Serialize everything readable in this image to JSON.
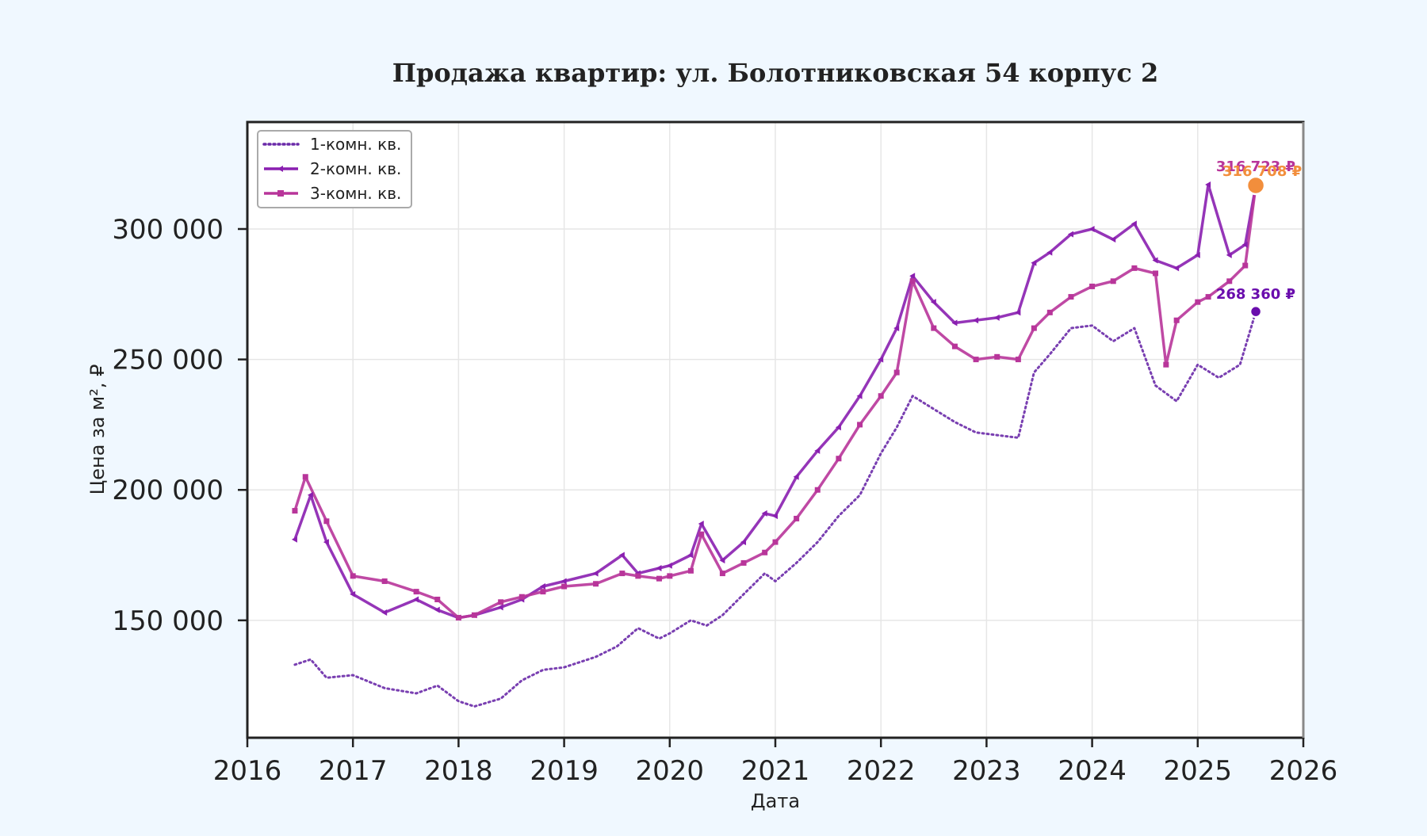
{
  "chart_data": {
    "type": "line",
    "title": "Продажа квартир: ул. Болотниковская 54 корпус 2",
    "xlabel": "Дата",
    "ylabel": "Цена за м², ₽",
    "x_ticks": [
      "2016",
      "2017",
      "2018",
      "2019",
      "2020",
      "2021",
      "2022",
      "2023",
      "2024",
      "2025",
      "2026"
    ],
    "y_ticks": [
      "150 000",
      "200 000",
      "250 000",
      "300 000"
    ],
    "y_tick_values": [
      150000,
      200000,
      250000,
      300000
    ],
    "xlim": [
      2016.0,
      2026.0
    ],
    "ylim": [
      105000,
      341000
    ],
    "grid": true,
    "legend_position": "top-left",
    "series": [
      {
        "name": "1-комн. кв.",
        "color": "#6a2aa8",
        "style": "dotted",
        "x": [
          2016.45,
          2016.6,
          2016.75,
          2017.0,
          2017.3,
          2017.6,
          2017.8,
          2018.0,
          2018.15,
          2018.4,
          2018.6,
          2018.8,
          2019.0,
          2019.3,
          2019.5,
          2019.7,
          2019.9,
          2020.0,
          2020.2,
          2020.35,
          2020.5,
          2020.7,
          2020.9,
          2021.0,
          2021.2,
          2021.4,
          2021.6,
          2021.8,
          2022.0,
          2022.15,
          2022.3,
          2022.5,
          2022.7,
          2022.9,
          2023.1,
          2023.3,
          2023.45,
          2023.6,
          2023.8,
          2024.0,
          2024.2,
          2024.4,
          2024.6,
          2024.8,
          2025.0,
          2025.2,
          2025.4,
          2025.55
        ],
        "values": [
          133000,
          135000,
          128000,
          129000,
          124000,
          122000,
          125000,
          119000,
          117000,
          120000,
          127000,
          131000,
          132000,
          136000,
          140000,
          147000,
          143000,
          145000,
          150000,
          148000,
          152000,
          160000,
          168000,
          165000,
          172000,
          180000,
          190000,
          198000,
          214000,
          224000,
          236000,
          231000,
          226000,
          222000,
          221000,
          220000,
          245000,
          252000,
          262000,
          263000,
          257000,
          262000,
          240000,
          234000,
          248000,
          243000,
          248000,
          268360
        ]
      },
      {
        "name": "2-комн. кв.",
        "color": "#8a1fb0",
        "style": "solid",
        "marker": "triangle-left",
        "x": [
          2016.45,
          2016.6,
          2016.75,
          2017.0,
          2017.3,
          2017.6,
          2017.8,
          2018.0,
          2018.15,
          2018.4,
          2018.6,
          2018.8,
          2019.0,
          2019.3,
          2019.55,
          2019.7,
          2019.9,
          2020.0,
          2020.2,
          2020.3,
          2020.5,
          2020.7,
          2020.9,
          2021.0,
          2021.2,
          2021.4,
          2021.6,
          2021.8,
          2022.0,
          2022.15,
          2022.3,
          2022.5,
          2022.7,
          2022.9,
          2023.1,
          2023.3,
          2023.45,
          2023.6,
          2023.8,
          2024.0,
          2024.2,
          2024.4,
          2024.6,
          2024.8,
          2025.0,
          2025.1,
          2025.3,
          2025.45,
          2025.55
        ],
        "values": [
          181000,
          198000,
          180000,
          160000,
          153000,
          158000,
          154000,
          151000,
          152000,
          155000,
          158000,
          163000,
          165000,
          168000,
          175000,
          168000,
          170000,
          171000,
          175000,
          187000,
          173000,
          180000,
          191000,
          190000,
          205000,
          215000,
          224000,
          236000,
          250000,
          262000,
          282000,
          272000,
          264000,
          265000,
          266000,
          268000,
          287000,
          291000,
          298000,
          300000,
          296000,
          302000,
          288000,
          285000,
          290000,
          317000,
          290000,
          294000,
          316723
        ]
      },
      {
        "name": "3-комн. кв.",
        "color": "#b8359a",
        "style": "solid",
        "marker": "square",
        "x": [
          2016.45,
          2016.55,
          2016.75,
          2017.0,
          2017.3,
          2017.6,
          2017.8,
          2018.0,
          2018.15,
          2018.4,
          2018.6,
          2018.8,
          2019.0,
          2019.3,
          2019.55,
          2019.7,
          2019.9,
          2020.0,
          2020.2,
          2020.3,
          2020.5,
          2020.7,
          2020.9,
          2021.0,
          2021.2,
          2021.4,
          2021.6,
          2021.8,
          2022.0,
          2022.15,
          2022.3,
          2022.5,
          2022.7,
          2022.9,
          2023.1,
          2023.3,
          2023.45,
          2023.6,
          2023.8,
          2024.0,
          2024.2,
          2024.4,
          2024.6,
          2024.7,
          2024.8,
          2025.0,
          2025.1,
          2025.3,
          2025.45,
          2025.55
        ],
        "values": [
          192000,
          205000,
          188000,
          167000,
          165000,
          161000,
          158000,
          151000,
          152000,
          157000,
          159000,
          161000,
          163000,
          164000,
          168000,
          167000,
          166000,
          167000,
          169000,
          183000,
          168000,
          172000,
          176000,
          180000,
          189000,
          200000,
          212000,
          225000,
          236000,
          245000,
          280000,
          262000,
          255000,
          250000,
          251000,
          250000,
          262000,
          268000,
          274000,
          278000,
          280000,
          285000,
          283000,
          248000,
          265000,
          272000,
          274000,
          280000,
          286000,
          316708
        ]
      }
    ],
    "endpoint_labels": [
      {
        "series": "2-комн. кв.",
        "text": "316 723 ₽",
        "color": "#b8359a"
      },
      {
        "series": "3-комн. кв.",
        "text": "316 708 ₽",
        "color": "#f28e3c"
      },
      {
        "series": "1-комн. кв.",
        "text": "268 360 ₽",
        "color": "#6a0dad"
      }
    ]
  }
}
